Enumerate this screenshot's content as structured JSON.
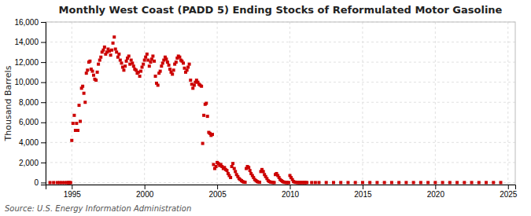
{
  "chart_data": {
    "type": "scatter",
    "title": "Monthly West Coast (PADD 5) Ending Stocks of Reformulated Motor Gasoline",
    "ylabel": "Thousand Barrels",
    "source": "Source: U.S. Energy Information Administration",
    "color": "#cc0000",
    "marker": "square",
    "grid": true,
    "xlim": [
      1993.2,
      2025.5
    ],
    "ylim": [
      -200,
      16000
    ],
    "xticks": [
      1995,
      2000,
      2005,
      2010,
      2015,
      2020,
      2025
    ],
    "yticks": [
      0,
      {
        "value": 2000,
        "label": "2,000"
      },
      {
        "value": 4000,
        "label": "4,000"
      },
      {
        "value": 6000,
        "label": "6,000"
      },
      {
        "value": 8000,
        "label": "8,000"
      },
      {
        "value": 10000,
        "label": "10,000"
      },
      {
        "value": 12000,
        "label": "12,000"
      },
      {
        "value": 14000,
        "label": "14,000"
      },
      {
        "value": 16000,
        "label": "16,000"
      }
    ],
    "x": [
      1993.5,
      1993.75,
      1994.0,
      1994.17,
      1994.33,
      1994.5,
      1994.67,
      1994.75,
      1994.83,
      1994.92,
      1995.0,
      1995.08,
      1995.17,
      1995.25,
      1995.33,
      1995.42,
      1995.5,
      1995.58,
      1995.67,
      1995.75,
      1995.83,
      1995.92,
      1996.0,
      1996.08,
      1996.17,
      1996.25,
      1996.33,
      1996.42,
      1996.5,
      1996.58,
      1996.67,
      1996.75,
      1996.83,
      1996.92,
      1997.0,
      1997.08,
      1997.17,
      1997.25,
      1997.33,
      1997.42,
      1997.5,
      1997.58,
      1997.67,
      1997.75,
      1997.83,
      1997.92,
      1998.0,
      1998.08,
      1998.17,
      1998.25,
      1998.33,
      1998.42,
      1998.5,
      1998.58,
      1998.67,
      1998.75,
      1998.83,
      1998.92,
      1999.0,
      1999.08,
      1999.17,
      1999.25,
      1999.33,
      1999.42,
      1999.5,
      1999.58,
      1999.67,
      1999.75,
      1999.83,
      1999.92,
      2000.0,
      2000.08,
      2000.17,
      2000.25,
      2000.33,
      2000.42,
      2000.5,
      2000.58,
      2000.67,
      2000.75,
      2000.83,
      2000.92,
      2001.0,
      2001.08,
      2001.17,
      2001.25,
      2001.33,
      2001.42,
      2001.5,
      2001.58,
      2001.67,
      2001.75,
      2001.83,
      2001.92,
      2002.0,
      2002.08,
      2002.17,
      2002.25,
      2002.33,
      2002.42,
      2002.5,
      2002.58,
      2002.67,
      2002.75,
      2002.83,
      2002.92,
      2003.0,
      2003.08,
      2003.17,
      2003.25,
      2003.33,
      2003.42,
      2003.5,
      2003.58,
      2003.67,
      2003.75,
      2003.83,
      2003.92,
      2004.0,
      2004.08,
      2004.17,
      2004.25,
      2004.33,
      2004.42,
      2004.5,
      2004.58,
      2004.67,
      2004.75,
      2004.83,
      2004.92,
      2005.0,
      2005.08,
      2005.17,
      2005.25,
      2005.33,
      2005.42,
      2005.5,
      2005.58,
      2005.67,
      2005.75,
      2005.83,
      2005.92,
      2006.0,
      2006.08,
      2006.17,
      2006.25,
      2006.33,
      2006.42,
      2006.5,
      2006.58,
      2006.67,
      2006.75,
      2006.83,
      2006.92,
      2007.0,
      2007.08,
      2007.17,
      2007.25,
      2007.33,
      2007.42,
      2007.5,
      2007.58,
      2007.67,
      2007.75,
      2007.83,
      2007.92,
      2008.0,
      2008.08,
      2008.17,
      2008.25,
      2008.33,
      2008.42,
      2008.5,
      2008.58,
      2008.67,
      2008.75,
      2008.83,
      2008.92,
      2009.0,
      2009.08,
      2009.17,
      2009.25,
      2009.33,
      2009.42,
      2009.5,
      2009.58,
      2009.67,
      2009.75,
      2009.83,
      2009.92,
      2010.0,
      2010.08,
      2010.17,
      2010.25,
      2010.33,
      2010.42,
      2010.5,
      2010.58,
      2010.67,
      2010.75,
      2010.83,
      2010.92,
      2011.0,
      2011.08,
      2011.17,
      2011.5,
      2011.75,
      2012.0,
      2012.5,
      2013.0,
      2013.5,
      2014.0,
      2014.5,
      2015.0,
      2015.5,
      2016.0,
      2016.5,
      2017.0,
      2017.5,
      2018.0,
      2018.5,
      2019.0,
      2019.5,
      2020.0,
      2020.5,
      2021.0,
      2021.5,
      2022.0,
      2022.5,
      2023.0,
      2023.5,
      2024.0,
      2024.5
    ],
    "values": [
      0,
      0,
      0,
      0,
      0,
      0,
      0,
      0,
      0,
      0,
      4200,
      5900,
      6700,
      5200,
      5900,
      5200,
      7700,
      6100,
      9400,
      9600,
      8900,
      8000,
      10900,
      11200,
      12000,
      12100,
      11300,
      11100,
      10700,
      10300,
      10200,
      11000,
      11800,
      12200,
      12500,
      13000,
      13200,
      13500,
      12800,
      13000,
      13300,
      13100,
      12700,
      13200,
      13900,
      14500,
      13300,
      13000,
      12500,
      12800,
      12200,
      11900,
      11500,
      11200,
      11600,
      12100,
      12400,
      12600,
      11800,
      12200,
      11900,
      11600,
      11300,
      11200,
      10900,
      11000,
      10600,
      11100,
      11500,
      11800,
      12200,
      12500,
      12800,
      12200,
      11600,
      12000,
      12300,
      12600,
      12100,
      10600,
      9900,
      9700,
      10900,
      11100,
      11600,
      11900,
      12200,
      12500,
      12300,
      12000,
      11700,
      11300,
      11000,
      10800,
      11200,
      11800,
      12000,
      12400,
      12600,
      12500,
      12200,
      12100,
      11900,
      11400,
      11000,
      11200,
      11500,
      11800,
      10200,
      9800,
      9400,
      9700,
      10000,
      10200,
      10000,
      9800,
      9700,
      9600,
      3900,
      6700,
      7800,
      7900,
      6600,
      5000,
      4900,
      4700,
      4800,
      1800,
      1400,
      1600,
      2000,
      1900,
      1700,
      1800,
      1600,
      1400,
      1500,
      1300,
      1200,
      900,
      700,
      500,
      1600,
      1900,
      1400,
      1100,
      800,
      600,
      400,
      300,
      200,
      100,
      50,
      30,
      1400,
      1600,
      1500,
      1200,
      900,
      700,
      500,
      300,
      200,
      100,
      50,
      30,
      1100,
      1300,
      1100,
      800,
      600,
      400,
      200,
      100,
      50,
      30,
      10,
      5,
      800,
      900,
      700,
      500,
      300,
      200,
      100,
      50,
      20,
      10,
      5,
      5,
      700,
      500,
      300,
      100,
      50,
      20,
      10,
      5,
      5,
      5,
      5,
      5,
      5,
      5,
      5,
      5,
      5,
      5,
      5,
      5,
      5,
      5,
      5,
      5,
      5,
      5,
      5,
      5,
      5,
      5,
      5,
      5,
      5,
      5,
      5,
      5,
      5,
      5,
      5,
      5,
      5,
      5,
      5
    ]
  }
}
